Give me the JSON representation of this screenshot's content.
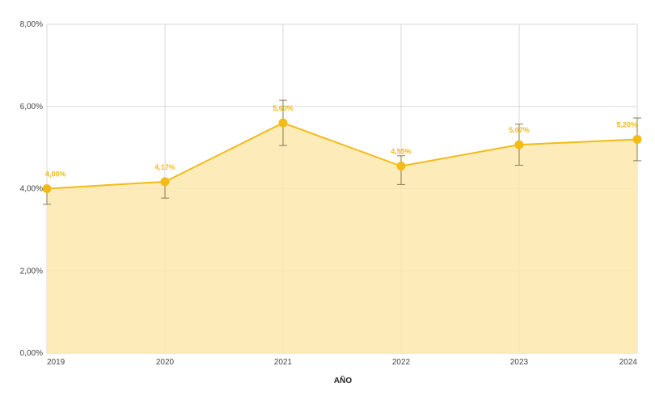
{
  "chart_data": {
    "type": "area",
    "title": "",
    "xlabel": "AÑO",
    "ylabel": "",
    "x": [
      "2019",
      "2020",
      "2021",
      "2022",
      "2023",
      "2024"
    ],
    "series": [
      {
        "values": [
          4.0,
          4.17,
          5.6,
          4.55,
          5.07,
          5.2
        ],
        "labels": [
          "4,00%",
          "4,17%",
          "5,60%",
          "4,55%",
          "5,07%",
          "5,20%"
        ],
        "error_low": [
          3.62,
          3.77,
          5.05,
          4.1,
          4.57,
          4.68
        ],
        "error_high": [
          4.0,
          4.17,
          6.15,
          4.8,
          5.57,
          5.72
        ]
      }
    ],
    "ylim": [
      0,
      8
    ],
    "yticks": [
      0,
      2,
      4,
      6,
      8
    ],
    "ytick_labels": [
      "0,00%",
      "2,00%",
      "4,00%",
      "6,00%",
      "8,00%"
    ],
    "grid": true,
    "colors": {
      "line": "#f2bb16",
      "fill": "#fde8ae",
      "label": "#f2bb16",
      "error": "#8a7a55",
      "grid": "#d9d9d9"
    }
  }
}
